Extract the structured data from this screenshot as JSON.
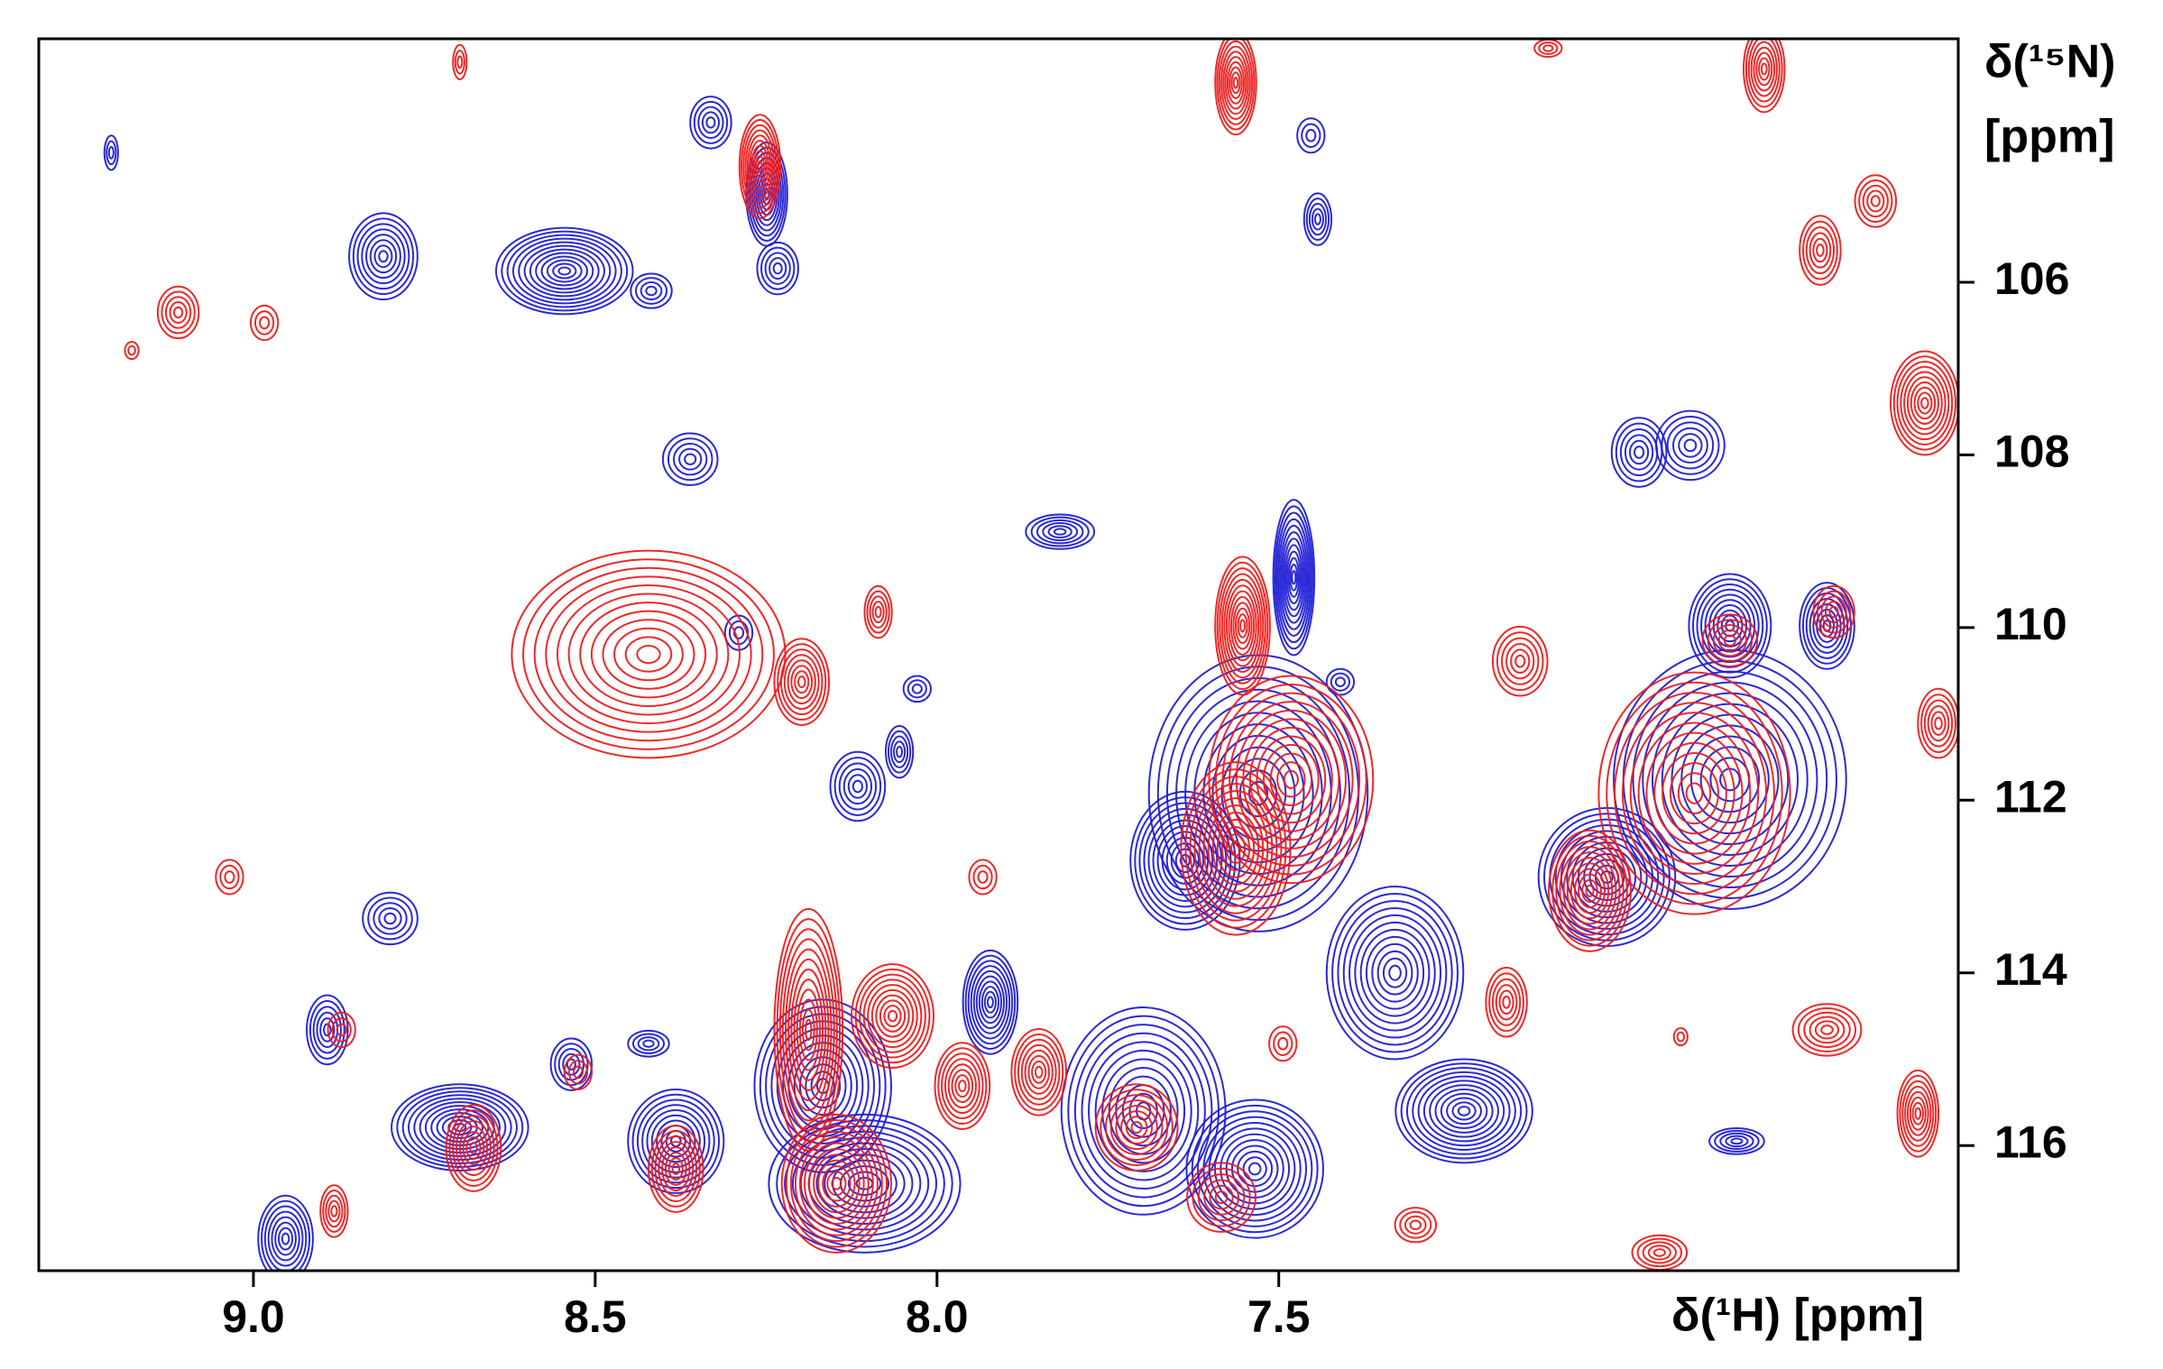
{
  "chart_data": {
    "type": "contour",
    "x_label": "δ(¹H) [ppm]",
    "y_label": [
      "δ(¹⁵N)",
      "[ppm]"
    ],
    "xlim": [
      9.314,
      6.506
    ],
    "ylim": [
      103.18,
      117.45
    ],
    "xticks": [
      {
        "value": 9.0,
        "label": "9.0"
      },
      {
        "value": 8.5,
        "label": "8.5"
      },
      {
        "value": 8.0,
        "label": "8.0"
      },
      {
        "value": 7.5,
        "label": "7.5"
      }
    ],
    "yticks": [
      106,
      108,
      110,
      112,
      114,
      116
    ],
    "series": [
      {
        "color": "#1f1fd6",
        "x": [
          8.331,
          8.249,
          8.81,
          8.545,
          8.233,
          8.418,
          7.453,
          7.443,
          9.208,
          8.361,
          7.82,
          7.478,
          6.973,
          6.898,
          6.698,
          6.84,
          6.84,
          7.02,
          7.53,
          7.637,
          7.33,
          7.229,
          7.698,
          7.535,
          8.8,
          8.892,
          8.698,
          8.535,
          8.382,
          8.167,
          8.106,
          7.922,
          8.116,
          8.055,
          8.029,
          8.29,
          7.41,
          6.83,
          8.953,
          8.422
        ],
        "y": [
          104.15,
          104.98,
          105.7,
          105.87,
          105.84,
          106.1,
          104.3,
          105.27,
          104.5,
          108.05,
          108.89,
          109.42,
          107.97,
          107.89,
          109.98,
          109.98,
          111.76,
          112.89,
          111.92,
          112.7,
          114.0,
          115.6,
          115.6,
          116.27,
          113.37,
          114.66,
          115.79,
          115.06,
          115.95,
          115.31,
          116.44,
          114.34,
          111.84,
          111.44,
          110.71,
          110.06,
          110.63,
          115.95,
          117.08,
          114.82
        ],
        "width": [
          0.03,
          0.03,
          0.05,
          0.1,
          0.03,
          0.03,
          0.02,
          0.02,
          0.01,
          0.04,
          0.05,
          0.03,
          0.04,
          0.05,
          0.04,
          0.06,
          0.17,
          0.1,
          0.16,
          0.08,
          0.1,
          0.1,
          0.12,
          0.1,
          0.04,
          0.03,
          0.1,
          0.03,
          0.07,
          0.1,
          0.14,
          0.04,
          0.04,
          0.02,
          0.02,
          0.02,
          0.02,
          0.04,
          0.04,
          0.03
        ],
        "height": [
          0.3,
          0.6,
          0.5,
          0.5,
          0.3,
          0.2,
          0.2,
          0.3,
          0.2,
          0.3,
          0.2,
          0.9,
          0.4,
          0.4,
          0.5,
          0.6,
          1.5,
          0.8,
          1.6,
          0.8,
          1.0,
          0.6,
          1.2,
          0.8,
          0.3,
          0.4,
          0.5,
          0.3,
          0.6,
          1.0,
          0.8,
          0.6,
          0.4,
          0.3,
          0.15,
          0.2,
          0.15,
          0.15,
          0.5,
          0.15
        ]
      },
      {
        "color": "#ee1c1c",
        "x": [
          8.422,
          8.198,
          8.259,
          8.698,
          9.11,
          8.984,
          9.178,
          7.563,
          7.106,
          6.79,
          6.627,
          6.708,
          6.555,
          7.553,
          8.086,
          7.147,
          6.84,
          6.688,
          7.482,
          7.563,
          6.892,
          7.045,
          9.035,
          7.933,
          8.188,
          8.065,
          7.963,
          7.851,
          7.708,
          8.382,
          8.147,
          8.678,
          8.525,
          8.871,
          6.698,
          6.565,
          6.535,
          7.167,
          6.912,
          7.494,
          7.3,
          8.882,
          7.584,
          6.943
        ],
        "y": [
          110.31,
          110.63,
          104.66,
          103.45,
          106.35,
          106.47,
          106.79,
          103.69,
          103.29,
          103.53,
          105.06,
          105.63,
          107.4,
          109.98,
          109.82,
          110.39,
          110.15,
          109.82,
          111.76,
          112.56,
          111.92,
          113.05,
          112.89,
          112.89,
          114.66,
          114.5,
          115.31,
          115.15,
          115.79,
          116.27,
          116.44,
          116.03,
          115.15,
          114.66,
          114.66,
          115.63,
          111.11,
          114.34,
          114.74,
          114.82,
          116.92,
          116.76,
          116.6,
          117.24
        ],
        "width": [
          0.2,
          0.04,
          0.03,
          0.01,
          0.03,
          0.02,
          0.01,
          0.03,
          0.02,
          0.03,
          0.03,
          0.03,
          0.05,
          0.04,
          0.02,
          0.04,
          0.04,
          0.03,
          0.12,
          0.08,
          0.14,
          0.06,
          0.02,
          0.02,
          0.05,
          0.06,
          0.04,
          0.04,
          0.06,
          0.04,
          0.08,
          0.04,
          0.02,
          0.02,
          0.05,
          0.03,
          0.03,
          0.03,
          0.01,
          0.02,
          0.03,
          0.02,
          0.05,
          0.04
        ],
        "height": [
          1.2,
          0.5,
          0.6,
          0.2,
          0.3,
          0.2,
          0.1,
          0.6,
          0.1,
          0.5,
          0.3,
          0.4,
          0.6,
          0.8,
          0.3,
          0.4,
          0.3,
          0.3,
          1.2,
          1.0,
          1.4,
          0.7,
          0.2,
          0.2,
          1.4,
          0.6,
          0.5,
          0.5,
          0.5,
          0.5,
          0.8,
          0.5,
          0.2,
          0.2,
          0.3,
          0.5,
          0.4,
          0.4,
          0.1,
          0.2,
          0.2,
          0.3,
          0.4,
          0.2
        ]
      }
    ]
  }
}
